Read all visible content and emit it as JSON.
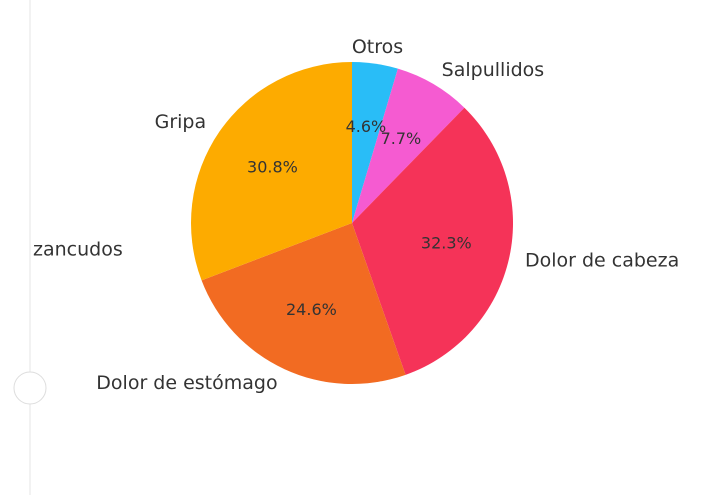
{
  "chart_data": {
    "type": "pie",
    "categories": [
      "Otros",
      "Salpullidos",
      "Dolor de cabeza",
      "Dolor de estómago",
      "Gripa"
    ],
    "values": [
      4.6,
      7.7,
      32.3,
      24.6,
      30.8
    ],
    "value_labels": [
      "4.6%",
      "7.7%",
      "32.3%",
      "24.6%",
      "30.8%"
    ],
    "colors": [
      "#29bdf7",
      "#f55bd1",
      "#f53358",
      "#f26b22",
      "#fdab00"
    ],
    "annotations": [
      "zancudos"
    ]
  }
}
